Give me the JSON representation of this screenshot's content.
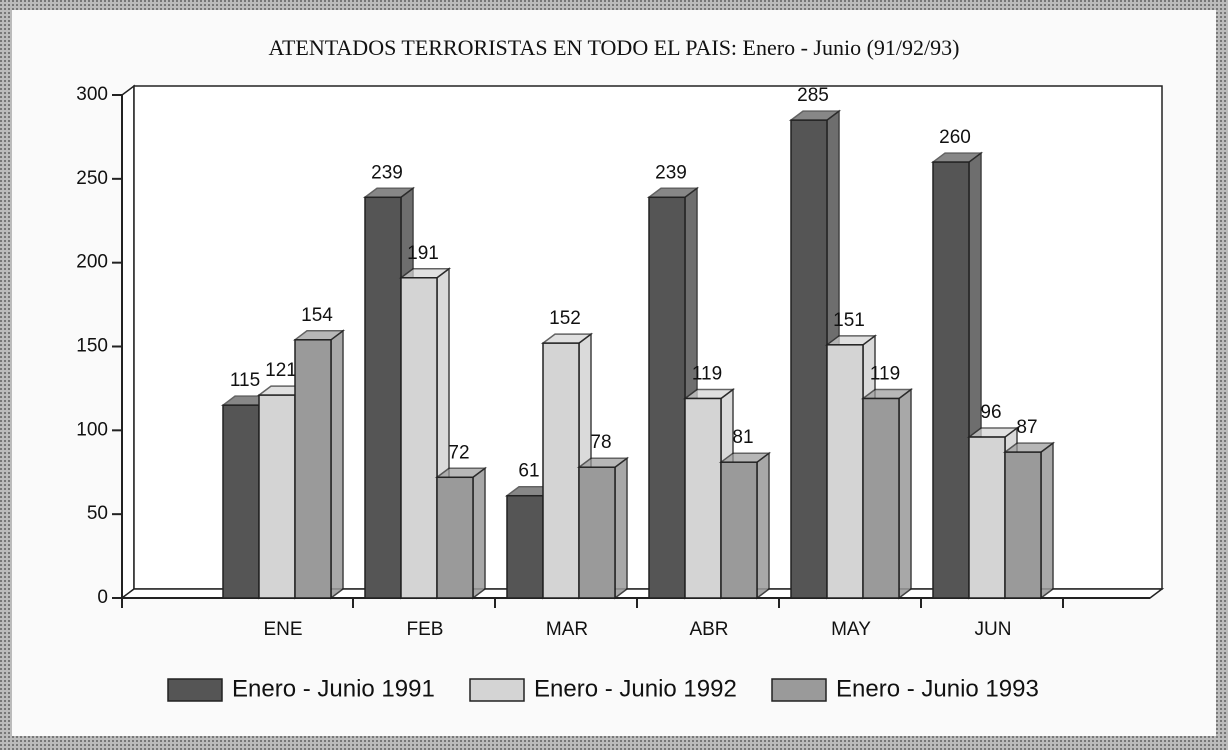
{
  "chart_data": {
    "type": "bar",
    "title": "ATENTADOS TERRORISTAS EN TODO EL PAIS: Enero - Junio (91/92/93)",
    "categories": [
      "ENE",
      "FEB",
      "MAR",
      "ABR",
      "MAY",
      "JUN"
    ],
    "series": [
      {
        "name": "Enero - Junio 1991",
        "color": "#555555",
        "values": [
          115,
          239,
          61,
          239,
          285,
          260
        ]
      },
      {
        "name": "Enero - Junio 1992",
        "color": "#d4d4d4",
        "values": [
          121,
          191,
          152,
          119,
          151,
          96
        ]
      },
      {
        "name": "Enero - Junio 1993",
        "color": "#9a9a9a",
        "values": [
          154,
          72,
          78,
          81,
          119,
          87
        ]
      }
    ],
    "ylim": [
      0,
      300
    ],
    "yticks": [
      0,
      50,
      100,
      150,
      200,
      250,
      300
    ],
    "legend": "bottom"
  }
}
